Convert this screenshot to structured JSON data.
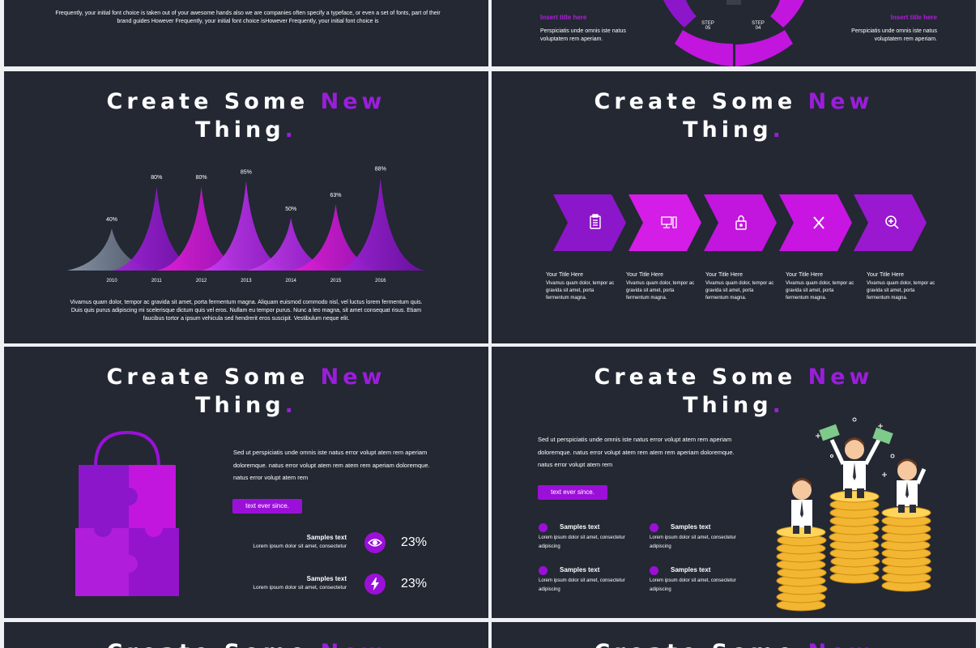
{
  "colors": {
    "bg": "#232833",
    "accent": "#9b1ddb",
    "magenta": "#d419e6",
    "violet": "#8a15cc"
  },
  "slide1": {
    "body": "Frequently, your initial font choice is taken out of your awesome hands also we are companies often specify a typeface, or even a set of fonts,  part of their brand guides However Frequently, your initial font choice isHowever Frequently, your initial font choice is"
  },
  "slide2": {
    "left_title": "Insert title here",
    "left_body": "Perspiciatis unde omnis iste natus voluptatem rem aperiam.",
    "right_title": "Insert title here",
    "right_body": "Perspiciatis unde omnis iste natus voluptatem rem aperiam.",
    "step_label_a": "STEP",
    "step_num_a": "05",
    "step_label_b": "STEP",
    "step_num_b": "04"
  },
  "heading": {
    "part1": "Create Some",
    "part2": "New",
    "part3": "Thing",
    "dot": "."
  },
  "slide3": {
    "chart_data": {
      "type": "area",
      "categories": [
        "2010",
        "2011",
        "2012",
        "2013",
        "2014",
        "2015",
        "2016"
      ],
      "values": [
        40,
        80,
        80,
        85,
        50,
        63,
        88
      ],
      "data_labels": [
        "40%",
        "80%",
        "80%",
        "85%",
        "50%",
        "63%",
        "88%"
      ]
    },
    "body": "Vivamus quam dolor,  tempor ac gravida sit amet, porta fermentum magna.  Aliquam euismod  commodo  nisl, vel luctus lorem fermentum quis.  Duis quis purus adipiscing  mi scelerisque  dictum quis vel eros.  Nullam eu tempor purus.  Nunc a leo magna, sit amet consequat risus.  Etiam faucibus  tortor a ipsum vehicula sed hendrerit  eros suscipit. Vestibulum   neque elit."
  },
  "slide4": {
    "arrows": [
      {
        "icon": "clipboard-icon",
        "title": "Your Title Here",
        "body": "Vivamus quam dolor, tempor ac gravida sit amet, porta fermentum magna."
      },
      {
        "icon": "computer-icon",
        "title": "Your Title Here",
        "body": "Vivamus quam dolor, tempor ac gravida sit amet, porta fermentum magna."
      },
      {
        "icon": "lock-icon",
        "title": "Your Title Here",
        "body": "Vivamus quam dolor, tempor ac gravida sit amet, porta fermentum magna."
      },
      {
        "icon": "tools-icon",
        "title": "Your Title Here",
        "body": "Vivamus quam dolor, tempor ac gravida sit amet, porta fermentum magna."
      },
      {
        "icon": "zoom-icon",
        "title": "Your Title Here",
        "body": "Vivamus quam dolor, tempor ac gravida sit amet, porta fermentum magna."
      }
    ]
  },
  "slide5": {
    "paragraph": "Sed ut perspiciatis unde omnis iste natus error volupt atem rem aperiam doloremque. natus error volupt atem rem atem rem aperiam doloremque. natus error volupt atem rem",
    "button": "text ever since.",
    "stats": [
      {
        "title": "Samples text",
        "desc": "Lorem ipsum dolor sit amet, consectetur",
        "icon": "eye-icon",
        "value": "23%"
      },
      {
        "title": "Samples text",
        "desc": "Lorem ipsum dolor sit amet, consectetur",
        "icon": "lightning-icon",
        "value": "23%"
      }
    ]
  },
  "slide6": {
    "paragraph": "Sed ut perspiciatis unde omnis iste natus error volupt atem rem aperiam doloremque. natus error volupt atem rem atem rem aperiam doloremque. natus error volupt atem rem",
    "button": "text ever since.",
    "items": [
      {
        "title": "Samples text",
        "desc": "Lorem ipsum dolor sit amet, consectetur adipiscing"
      },
      {
        "title": "Samples text",
        "desc": "Lorem ipsum dolor sit amet, consectetur adipiscing"
      },
      {
        "title": "Samples text",
        "desc": "Lorem ipsum dolor sit amet, consectetur adipiscing"
      },
      {
        "title": "Samples text",
        "desc": "Lorem ipsum dolor sit amet, consectetur adipiscing"
      }
    ]
  }
}
